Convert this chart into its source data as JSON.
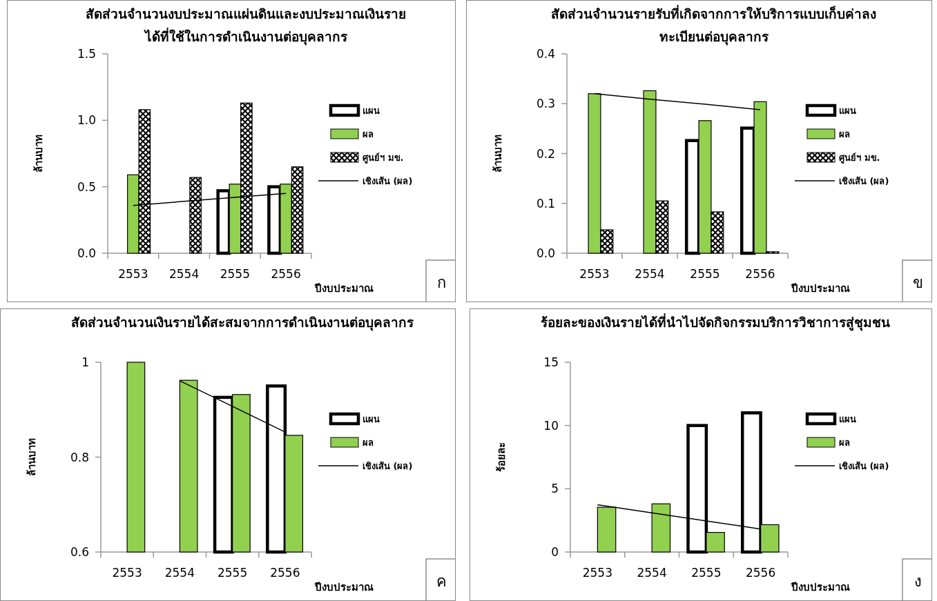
{
  "chart_data": [
    {
      "type": "bar",
      "title": "สัดส่วนจำนวนงบประมาณแผ่นดินและงบประมาณเงินรายได้ที่ใช้ในการดำเนินงานต่อบุคลากร",
      "xlabel": "ปีงบประมาณ",
      "ylabel": "ล้านบาท",
      "categories": [
        "2553",
        "2554",
        "2555",
        "2556"
      ],
      "series": [
        {
          "name": "แผน",
          "color": "#ffffff",
          "values": [
            null,
            null,
            0.47,
            0.5
          ]
        },
        {
          "name": "ผล",
          "color": "#92d050",
          "values": [
            0.59,
            null,
            0.52,
            0.52
          ]
        },
        {
          "name": "ศูนย์ฯ มข.",
          "color": "#000000",
          "values": [
            1.08,
            0.57,
            1.13,
            0.65
          ]
        },
        {
          "name": "เชิงเส้น (ผล)",
          "type": "line",
          "color": "#000000",
          "values": [
            0.36,
            0.39,
            0.42,
            0.45
          ]
        }
      ],
      "ylim": [
        0,
        1.5
      ],
      "yticks": [
        {
          "value": 0,
          "label": "0.0"
        },
        {
          "value": 0.5,
          "label": "0.5"
        },
        {
          "value": 1,
          "label": "1.0"
        },
        {
          "value": 1.5,
          "label": "1.5"
        }
      ],
      "legend": "right",
      "annotations": [
        "ก"
      ]
    },
    {
      "type": "bar",
      "title": "สัดส่วนจำนวนรายรับที่เกิดจากการให้บริการแบบเก็บค่าลงทะเบียนต่อบุคลากร",
      "xlabel": "ปีงบประมาณ",
      "ylabel": "ล้านบาท",
      "categories": [
        "2553",
        "2554",
        "2555",
        "2556"
      ],
      "series": [
        {
          "name": "แผน",
          "color": "#ffffff",
          "values": [
            null,
            null,
            0.226,
            0.251
          ]
        },
        {
          "name": "ผล",
          "color": "#92d050",
          "values": [
            0.32,
            0.326,
            0.266,
            0.304
          ]
        },
        {
          "name": "ศูนย์ฯ มข.",
          "color": "#000000",
          "values": [
            0.047,
            0.105,
            0.083,
            0.003
          ]
        },
        {
          "name": "เชิงเส้น (ผล)",
          "type": "line",
          "color": "#000000",
          "values": [
            0.32,
            0.309,
            0.299,
            0.288
          ]
        }
      ],
      "ylim": [
        0,
        0.4
      ],
      "yticks": [
        {
          "value": 0,
          "label": "0.0"
        },
        0.1,
        0.2,
        0.3,
        0.4
      ],
      "legend": "right",
      "annotations": [
        "ข"
      ]
    },
    {
      "type": "bar",
      "title": "สัดส่วนจำนวนเงินรายได้สะสมจากการดำเนินงานต่อบุคลากร",
      "xlabel": "ปีงบประมาณ",
      "ylabel": "ล้านบาท",
      "categories": [
        "2553",
        "2554",
        "2555",
        "2556"
      ],
      "series": [
        {
          "name": "แผน",
          "color": "#ffffff",
          "values": [
            null,
            null,
            0.926,
            0.95
          ]
        },
        {
          "name": "ผล",
          "color": "#92d050",
          "values": [
            1.0,
            0.962,
            0.932,
            0.846
          ]
        },
        {
          "name": "เชิงเส้น (ผล)",
          "type": "line",
          "color": "#000000",
          "values": [
            null,
            0.961,
            0.907,
            0.853
          ]
        }
      ],
      "ylim": [
        0.6,
        1
      ],
      "yticks": [
        0.6,
        0.8,
        1
      ],
      "legend": "right",
      "annotations": [
        "ค"
      ]
    },
    {
      "type": "bar",
      "title": "ร้อยละของเงินรายได้ที่นำไปจัดกิจกรรมบริการวิชาการสู่ชุมชน",
      "xlabel": "ปีงบประมาณ",
      "ylabel": "ร้อยละ",
      "categories": [
        "2553",
        "2554",
        "2555",
        "2556"
      ],
      "series": [
        {
          "name": "แผน",
          "color": "#ffffff",
          "values": [
            null,
            null,
            10.0,
            11.0
          ]
        },
        {
          "name": "ผล",
          "color": "#92d050",
          "values": [
            3.54,
            3.81,
            1.55,
            2.16
          ]
        },
        {
          "name": "เชิงเส้น (ผล)",
          "type": "line",
          "color": "#000000",
          "values": [
            3.73,
            3.09,
            2.46,
            1.82
          ]
        }
      ],
      "ylim": [
        0,
        15
      ],
      "yticks": [
        0,
        5,
        10,
        15
      ],
      "legend": "right",
      "annotations": [
        "ง"
      ]
    }
  ]
}
